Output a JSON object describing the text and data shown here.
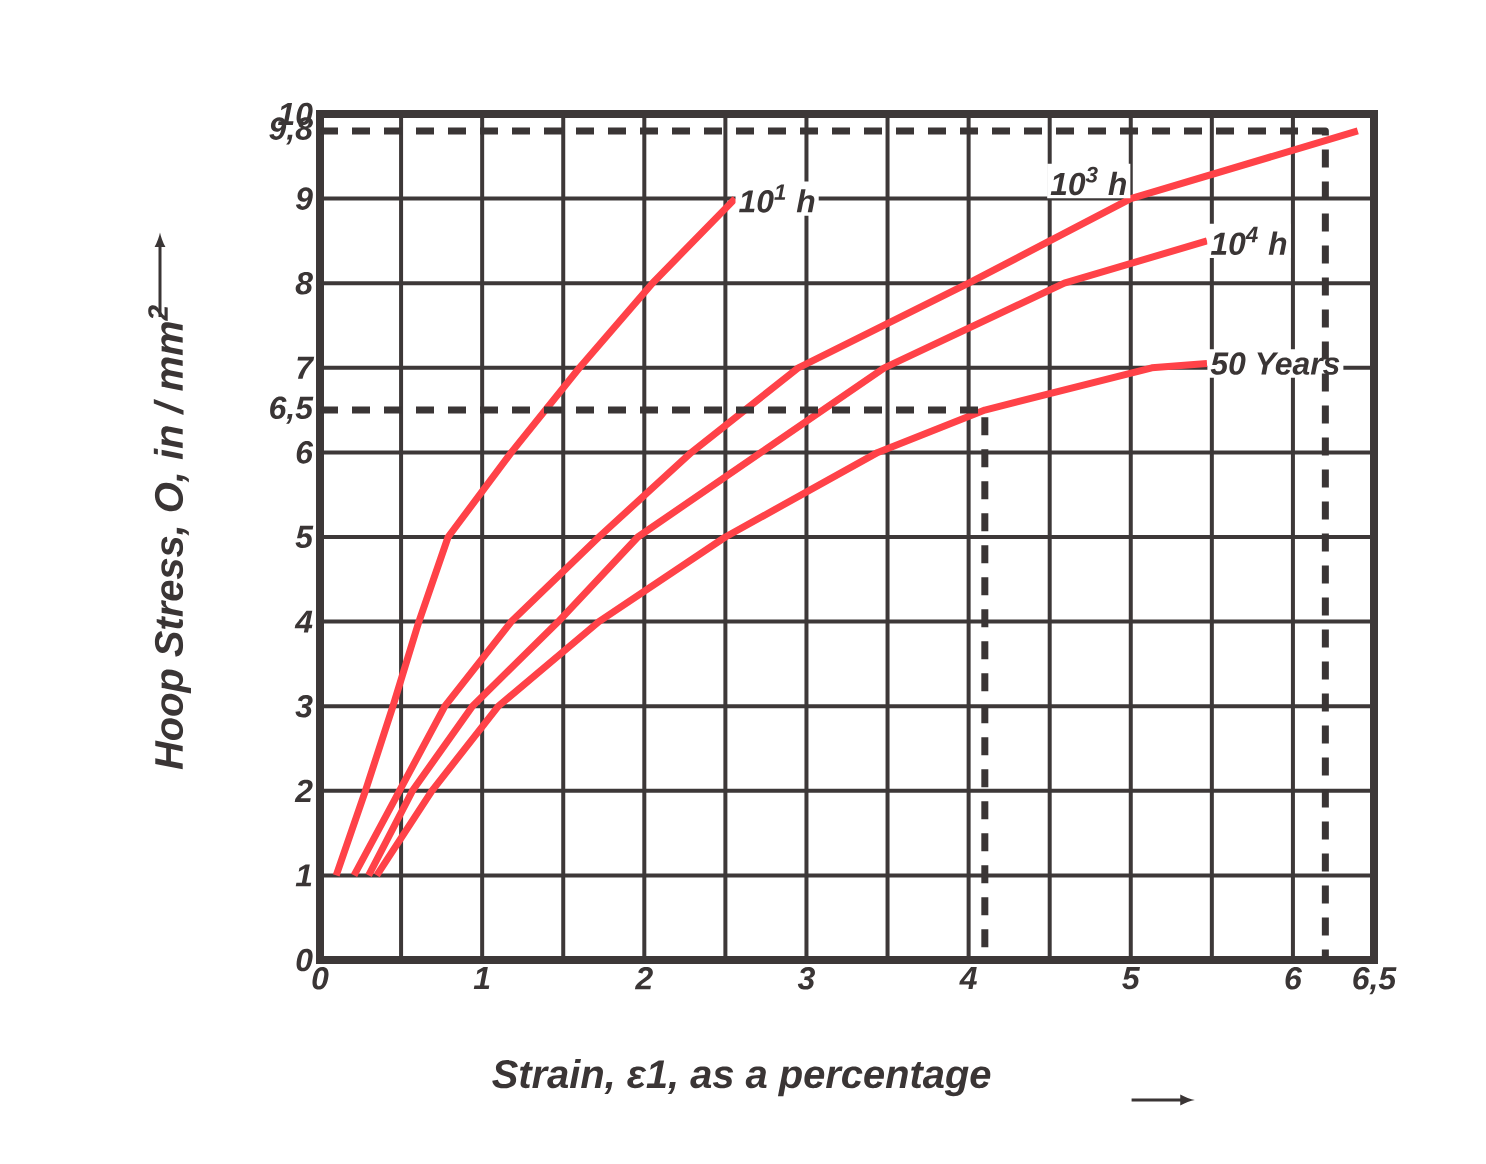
{
  "chart_data": {
    "type": "line",
    "xlabel": "Strain, ε1, as a percentage",
    "ylabel": "Hoop Stress, O, in / mm$^{2}$",
    "xlim": [
      0,
      6.5
    ],
    "ylim": [
      0,
      10
    ],
    "xticks": [
      0,
      {
        "value": 0.5,
        "label": null
      },
      1,
      {
        "value": 1.5,
        "label": null
      },
      2,
      {
        "value": 2.5,
        "label": null
      },
      3,
      {
        "value": 3.5,
        "label": null
      },
      4,
      {
        "value": 4.5,
        "label": null
      },
      5,
      {
        "value": 5.5,
        "label": null
      },
      6,
      {
        "value": 6.5,
        "label": "6,5"
      }
    ],
    "yticks": [
      0,
      1,
      2,
      3,
      4,
      5,
      6,
      {
        "value": 6.5,
        "label": "6,5"
      },
      7,
      8,
      9,
      {
        "value": 9.8,
        "label": "9,8"
      },
      10
    ],
    "grid": true,
    "line_style": "solid",
    "series": [
      {
        "name": "10$^{1}$ h",
        "color": "#ff4248",
        "x": [
          0.1,
          0.28,
          0.45,
          0.61,
          0.79,
          1.18,
          1.6,
          2.05,
          2.56
        ],
        "values": [
          1,
          2,
          3,
          4,
          5,
          6,
          7,
          8,
          9
        ]
      },
      {
        "name": "10$^{3}$ h",
        "color": "#ff4248",
        "x": [
          0.21,
          0.49,
          0.77,
          1.18,
          1.72,
          2.29,
          2.95,
          4.0,
          5.0,
          6.4
        ],
        "values": [
          1,
          2,
          3,
          4,
          5,
          6,
          7,
          8,
          9,
          9.8
        ]
      },
      {
        "name": "10$^{4}$ h",
        "color": "#ff4248",
        "x": [
          0.3,
          0.57,
          0.94,
          1.47,
          1.96,
          2.72,
          3.48,
          4.59,
          5.47
        ],
        "values": [
          1,
          2,
          3,
          4,
          5,
          6,
          7,
          8,
          8.5
        ]
      },
      {
        "name": "50 Years",
        "color": "#ff4248",
        "x": [
          0.35,
          0.69,
          1.1,
          1.72,
          2.5,
          3.44,
          4.1,
          5.13,
          5.47
        ],
        "values": [
          1,
          2,
          3,
          4,
          5,
          6,
          6.5,
          7,
          7.05
        ]
      },
      {
        "color": "#3a3535",
        "line_style": "dashed",
        "x": [
          0,
          4.1,
          4.1
        ],
        "values": [
          6.5,
          6.5,
          0
        ]
      },
      {
        "color": "#3a3535",
        "line_style": "dashed",
        "x": [
          0,
          6.2,
          6.2
        ],
        "values": [
          9.8,
          9.8,
          0
        ]
      }
    ]
  }
}
